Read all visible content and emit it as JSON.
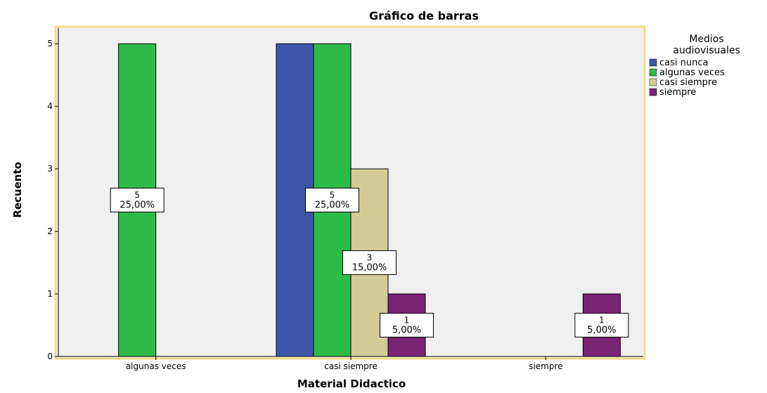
{
  "chart_data": {
    "type": "bar",
    "title": "Gráfico de barras",
    "x_label": "Material Didactico",
    "y_label": "Recuento",
    "legend_title": [
      "Medios",
      "audiovisuales"
    ],
    "categories": [
      "algunas veces",
      "casi siempre",
      "siempre"
    ],
    "series": [
      {
        "name": "casi nunca",
        "color": "#3d55a9",
        "values": [
          null,
          5,
          null
        ],
        "percent_labels": [
          null,
          "25,00%",
          null
        ]
      },
      {
        "name": "algunas veces",
        "color": "#2dbb48",
        "values": [
          5,
          5,
          null
        ],
        "percent_labels": [
          "25,00%",
          "25,00%",
          null
        ]
      },
      {
        "name": "casi siempre",
        "color": "#d5cb97",
        "values": [
          null,
          3,
          null
        ],
        "percent_labels": [
          null,
          "15,00%",
          null
        ]
      },
      {
        "name": "siempre",
        "color": "#7a2474",
        "values": [
          null,
          1,
          1
        ],
        "percent_labels": [
          null,
          "5,00%",
          "5,00%"
        ]
      }
    ],
    "data_label_series": [
      [
        1,
        0
      ],
      [
        1,
        1
      ],
      [
        2,
        1
      ],
      [
        3,
        1
      ],
      [
        3,
        2
      ]
    ],
    "ylim": [
      0,
      5.25
    ],
    "yticks": [
      0,
      1,
      2,
      3,
      4,
      5
    ],
    "legend_position": "right"
  }
}
